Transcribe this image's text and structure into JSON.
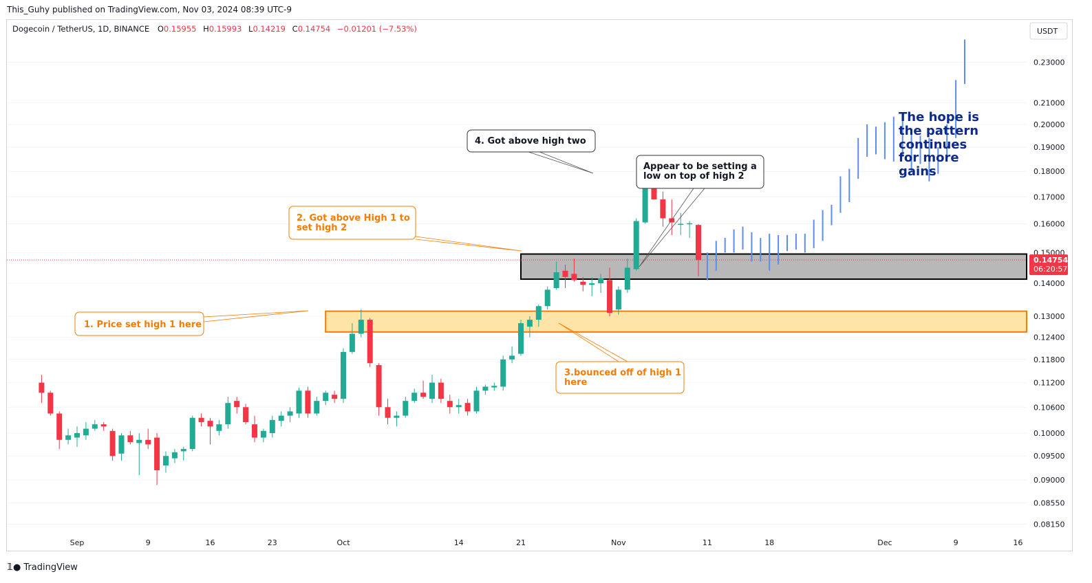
{
  "publisher_line": "This_Guhy published on TradingView.com, Nov 03, 2024 08:39 UTC-9",
  "legend": {
    "symbol": "Dogecoin / TetherUS, 1D, BINANCE",
    "o_label": "O",
    "o_val": "0.15955",
    "h_label": "H",
    "h_val": "0.15993",
    "l_label": "L",
    "l_val": "0.14219",
    "c_label": "C",
    "c_val": "0.14754",
    "change": "−0.01201 (−7.53%)"
  },
  "currency_button": "USDT",
  "price_label": {
    "value": "0.14754",
    "countdown": "06:20:57"
  },
  "footer": {
    "brand": "TradingView",
    "logo_icon": "tradingview-logo-icon"
  },
  "colors": {
    "up": "#22ab94",
    "down": "#f23645",
    "projection": "#5b8def",
    "orange": "#f57c00",
    "annotation_text": "#0d2a8a"
  },
  "annotations": {
    "note1": "1. Price set high 1 here",
    "note2_line1": "2. Got above High 1 to",
    "note2_line2": "set high 2",
    "note3_line1": "3.bounced off of high 1",
    "note3_line2": "here",
    "note4": "4. Got above high two",
    "note5_line1": "Appear to be setting a",
    "note5_line2": "low on top of high 2",
    "hope_lines": [
      "The hope is",
      "the pattern",
      "continues",
      "for more",
      "gains"
    ]
  },
  "chart_data": {
    "type": "candlestick",
    "y_axis": {
      "scale": "log",
      "ticks": [
        "0.23000",
        "0.21000",
        "0.20000",
        "0.19000",
        "0.18000",
        "0.17000",
        "0.16000",
        "0.15000",
        "0.14000",
        "0.13000",
        "0.12400",
        "0.11800",
        "0.11200",
        "0.10600",
        "0.10000",
        "0.09500",
        "0.09000",
        "0.08550",
        "0.08150"
      ]
    },
    "x_axis": {
      "ticks": [
        {
          "label": "Sep",
          "date": "2024-09-01"
        },
        {
          "label": "9",
          "date": "2024-09-09"
        },
        {
          "label": "16",
          "date": "2024-09-16"
        },
        {
          "label": "23",
          "date": "2024-09-23"
        },
        {
          "label": "Oct",
          "date": "2024-10-01"
        },
        {
          "label": "14",
          "date": "2024-10-14"
        },
        {
          "label": "21",
          "date": "2024-10-21"
        },
        {
          "label": "Nov",
          "date": "2024-11-01"
        },
        {
          "label": "11",
          "date": "2024-11-11"
        },
        {
          "label": "18",
          "date": "2024-11-18"
        },
        {
          "label": "Dec",
          "date": "2024-12-01"
        },
        {
          "label": "9",
          "date": "2024-12-09"
        },
        {
          "label": "16",
          "date": "2024-12-16"
        }
      ]
    },
    "zones": [
      {
        "name": "High 1 zone",
        "top": 0.1315,
        "bottom": 0.1255,
        "from": "2024-09-29",
        "to": "2024-12-17",
        "color": "#ffe4a8",
        "border": "#f57c00"
      },
      {
        "name": "High 2 zone",
        "top": 0.1495,
        "bottom": 0.1413,
        "from": "2024-10-21",
        "to": "2024-12-17",
        "color": "#b8b8b8",
        "border": "#000000"
      }
    ],
    "last_price": 0.14754,
    "candles": [
      {
        "d": "2024-08-28",
        "o": 0.112,
        "h": 0.114,
        "l": 0.107,
        "c": 0.1095
      },
      {
        "d": "2024-08-29",
        "o": 0.1095,
        "h": 0.11,
        "l": 0.104,
        "c": 0.1045
      },
      {
        "d": "2024-08-30",
        "o": 0.1045,
        "h": 0.105,
        "l": 0.0965,
        "c": 0.0985
      },
      {
        "d": "2024-08-31",
        "o": 0.0985,
        "h": 0.101,
        "l": 0.0975,
        "c": 0.0995
      },
      {
        "d": "2024-09-01",
        "o": 0.099,
        "h": 0.1015,
        "l": 0.097,
        "c": 0.1
      },
      {
        "d": "2024-09-02",
        "o": 0.0995,
        "h": 0.1025,
        "l": 0.0985,
        "c": 0.101
      },
      {
        "d": "2024-09-03",
        "o": 0.101,
        "h": 0.103,
        "l": 0.1005,
        "c": 0.102
      },
      {
        "d": "2024-09-04",
        "o": 0.102,
        "h": 0.1025,
        "l": 0.1005,
        "c": 0.1015
      },
      {
        "d": "2024-09-05",
        "o": 0.1005,
        "h": 0.101,
        "l": 0.094,
        "c": 0.095
      },
      {
        "d": "2024-09-06",
        "o": 0.0955,
        "h": 0.1,
        "l": 0.094,
        "c": 0.0995
      },
      {
        "d": "2024-09-07",
        "o": 0.0995,
        "h": 0.1005,
        "l": 0.0975,
        "c": 0.098
      },
      {
        "d": "2024-09-08",
        "o": 0.0978,
        "h": 0.1,
        "l": 0.091,
        "c": 0.0985
      },
      {
        "d": "2024-09-09",
        "o": 0.0985,
        "h": 0.101,
        "l": 0.0965,
        "c": 0.0975
      },
      {
        "d": "2024-09-10",
        "o": 0.099,
        "h": 0.1,
        "l": 0.089,
        "c": 0.092
      },
      {
        "d": "2024-09-11",
        "o": 0.093,
        "h": 0.096,
        "l": 0.0915,
        "c": 0.095
      },
      {
        "d": "2024-09-12",
        "o": 0.0945,
        "h": 0.0965,
        "l": 0.0935,
        "c": 0.0958
      },
      {
        "d": "2024-09-13",
        "o": 0.096,
        "h": 0.097,
        "l": 0.094,
        "c": 0.0965
      },
      {
        "d": "2024-09-14",
        "o": 0.0965,
        "h": 0.104,
        "l": 0.096,
        "c": 0.1035
      },
      {
        "d": "2024-09-15",
        "o": 0.1035,
        "h": 0.1045,
        "l": 0.1015,
        "c": 0.1025
      },
      {
        "d": "2024-09-16",
        "o": 0.1028,
        "h": 0.1035,
        "l": 0.0975,
        "c": 0.1015
      },
      {
        "d": "2024-09-17",
        "o": 0.1005,
        "h": 0.103,
        "l": 0.0995,
        "c": 0.102
      },
      {
        "d": "2024-09-18",
        "o": 0.102,
        "h": 0.1085,
        "l": 0.101,
        "c": 0.107
      },
      {
        "d": "2024-09-19",
        "o": 0.1075,
        "h": 0.1085,
        "l": 0.1045,
        "c": 0.106
      },
      {
        "d": "2024-09-20",
        "o": 0.106,
        "h": 0.1068,
        "l": 0.102,
        "c": 0.1025
      },
      {
        "d": "2024-09-21",
        "o": 0.102,
        "h": 0.104,
        "l": 0.098,
        "c": 0.099
      },
      {
        "d": "2024-09-22",
        "o": 0.099,
        "h": 0.101,
        "l": 0.098,
        "c": 0.1005
      },
      {
        "d": "2024-09-23",
        "o": 0.1,
        "h": 0.104,
        "l": 0.099,
        "c": 0.103
      },
      {
        "d": "2024-09-24",
        "o": 0.1028,
        "h": 0.105,
        "l": 0.1015,
        "c": 0.104
      },
      {
        "d": "2024-09-25",
        "o": 0.104,
        "h": 0.106,
        "l": 0.1025,
        "c": 0.105
      },
      {
        "d": "2024-09-26",
        "o": 0.1045,
        "h": 0.1108,
        "l": 0.1035,
        "c": 0.11
      },
      {
        "d": "2024-09-27",
        "o": 0.11,
        "h": 0.111,
        "l": 0.1035,
        "c": 0.1045
      },
      {
        "d": "2024-09-28",
        "o": 0.1045,
        "h": 0.1085,
        "l": 0.104,
        "c": 0.1075
      },
      {
        "d": "2024-09-29",
        "o": 0.1075,
        "h": 0.11,
        "l": 0.1065,
        "c": 0.1095
      },
      {
        "d": "2024-09-30",
        "o": 0.109,
        "h": 0.11,
        "l": 0.107,
        "c": 0.108
      },
      {
        "d": "2024-10-01",
        "o": 0.108,
        "h": 0.121,
        "l": 0.107,
        "c": 0.12
      },
      {
        "d": "2024-10-02",
        "o": 0.12,
        "h": 0.128,
        "l": 0.1195,
        "c": 0.125
      },
      {
        "d": "2024-10-03",
        "o": 0.125,
        "h": 0.132,
        "l": 0.124,
        "c": 0.129
      },
      {
        "d": "2024-10-04",
        "o": 0.129,
        "h": 0.1295,
        "l": 0.116,
        "c": 0.117
      },
      {
        "d": "2024-10-05",
        "o": 0.1165,
        "h": 0.117,
        "l": 0.104,
        "c": 0.106
      },
      {
        "d": "2024-10-06",
        "o": 0.106,
        "h": 0.108,
        "l": 0.102,
        "c": 0.1035
      },
      {
        "d": "2024-10-07",
        "o": 0.1035,
        "h": 0.105,
        "l": 0.1015,
        "c": 0.104
      },
      {
        "d": "2024-10-08",
        "o": 0.104,
        "h": 0.1085,
        "l": 0.1035,
        "c": 0.1075
      },
      {
        "d": "2024-10-09",
        "o": 0.1075,
        "h": 0.1105,
        "l": 0.107,
        "c": 0.1095
      },
      {
        "d": "2024-10-10",
        "o": 0.1095,
        "h": 0.1125,
        "l": 0.108,
        "c": 0.1085
      },
      {
        "d": "2024-10-11",
        "o": 0.108,
        "h": 0.114,
        "l": 0.107,
        "c": 0.112
      },
      {
        "d": "2024-10-12",
        "o": 0.112,
        "h": 0.113,
        "l": 0.107,
        "c": 0.108
      },
      {
        "d": "2024-10-13",
        "o": 0.1075,
        "h": 0.109,
        "l": 0.1045,
        "c": 0.106
      },
      {
        "d": "2024-10-14",
        "o": 0.106,
        "h": 0.108,
        "l": 0.1045,
        "c": 0.1065
      },
      {
        "d": "2024-10-15",
        "o": 0.107,
        "h": 0.108,
        "l": 0.104,
        "c": 0.105
      },
      {
        "d": "2024-10-16",
        "o": 0.105,
        "h": 0.111,
        "l": 0.1045,
        "c": 0.11
      },
      {
        "d": "2024-10-17",
        "o": 0.11,
        "h": 0.1115,
        "l": 0.109,
        "c": 0.111
      },
      {
        "d": "2024-10-18",
        "o": 0.1108,
        "h": 0.112,
        "l": 0.11,
        "c": 0.1112
      },
      {
        "d": "2024-10-19",
        "o": 0.111,
        "h": 0.119,
        "l": 0.11,
        "c": 0.118
      },
      {
        "d": "2024-10-20",
        "o": 0.118,
        "h": 0.1215,
        "l": 0.117,
        "c": 0.119
      },
      {
        "d": "2024-10-21",
        "o": 0.1195,
        "h": 0.129,
        "l": 0.119,
        "c": 0.128
      },
      {
        "d": "2024-10-22",
        "o": 0.127,
        "h": 0.13,
        "l": 0.124,
        "c": 0.129
      },
      {
        "d": "2024-10-23",
        "o": 0.129,
        "h": 0.1335,
        "l": 0.127,
        "c": 0.133
      },
      {
        "d": "2024-10-24",
        "o": 0.133,
        "h": 0.139,
        "l": 0.132,
        "c": 0.138
      },
      {
        "d": "2024-10-25",
        "o": 0.1385,
        "h": 0.147,
        "l": 0.138,
        "c": 0.1435
      },
      {
        "d": "2024-10-26",
        "o": 0.144,
        "h": 0.146,
        "l": 0.1385,
        "c": 0.142
      },
      {
        "d": "2024-10-27",
        "o": 0.143,
        "h": 0.148,
        "l": 0.1405,
        "c": 0.141
      },
      {
        "d": "2024-10-28",
        "o": 0.1405,
        "h": 0.142,
        "l": 0.1375,
        "c": 0.1395
      },
      {
        "d": "2024-10-29",
        "o": 0.1395,
        "h": 0.142,
        "l": 0.136,
        "c": 0.14
      },
      {
        "d": "2024-10-30",
        "o": 0.14,
        "h": 0.143,
        "l": 0.137,
        "c": 0.1415
      },
      {
        "d": "2024-10-31",
        "o": 0.141,
        "h": 0.145,
        "l": 0.13,
        "c": 0.131
      },
      {
        "d": "2024-11-01",
        "o": 0.132,
        "h": 0.139,
        "l": 0.1305,
        "c": 0.138
      },
      {
        "d": "2024-11-02",
        "o": 0.138,
        "h": 0.148,
        "l": 0.137,
        "c": 0.145
      },
      {
        "d": "2024-11-03",
        "o": 0.1445,
        "h": 0.162,
        "l": 0.144,
        "c": 0.161
      },
      {
        "d": "2024-11-04",
        "o": 0.1605,
        "h": 0.179,
        "l": 0.16,
        "c": 0.178
      },
      {
        "d": "2024-11-05",
        "o": 0.1775,
        "h": 0.178,
        "l": 0.169,
        "c": 0.169
      },
      {
        "d": "2024-11-06",
        "o": 0.169,
        "h": 0.172,
        "l": 0.159,
        "c": 0.162
      },
      {
        "d": "2024-11-07",
        "o": 0.162,
        "h": 0.169,
        "l": 0.156,
        "c": 0.1605
      },
      {
        "d": "2024-11-08",
        "o": 0.16,
        "h": 0.164,
        "l": 0.156,
        "c": 0.16
      },
      {
        "d": "2024-11-09",
        "o": 0.16,
        "h": 0.161,
        "l": 0.155,
        "c": 0.1602
      },
      {
        "d": "2024-11-10",
        "o": 0.1596,
        "h": 0.1599,
        "l": 0.1422,
        "c": 0.1475
      }
    ],
    "projection_bars": [
      {
        "d": "2024-11-11",
        "h": 0.15,
        "l": 0.141
      },
      {
        "d": "2024-11-12",
        "h": 0.154,
        "l": 0.144
      },
      {
        "d": "2024-11-13",
        "h": 0.155,
        "l": 0.15
      },
      {
        "d": "2024-11-14",
        "h": 0.158,
        "l": 0.15
      },
      {
        "d": "2024-11-15",
        "h": 0.159,
        "l": 0.151
      },
      {
        "d": "2024-11-16",
        "h": 0.157,
        "l": 0.147
      },
      {
        "d": "2024-11-17",
        "h": 0.155,
        "l": 0.147
      },
      {
        "d": "2024-11-18",
        "h": 0.1565,
        "l": 0.144
      },
      {
        "d": "2024-11-19",
        "h": 0.156,
        "l": 0.146
      },
      {
        "d": "2024-11-20",
        "h": 0.156,
        "l": 0.1505
      },
      {
        "d": "2024-11-21",
        "h": 0.1565,
        "l": 0.151
      },
      {
        "d": "2024-11-22",
        "h": 0.1565,
        "l": 0.15
      },
      {
        "d": "2024-11-23",
        "h": 0.1615,
        "l": 0.1515
      },
      {
        "d": "2024-11-24",
        "h": 0.165,
        "l": 0.154
      },
      {
        "d": "2024-11-25",
        "h": 0.167,
        "l": 0.1595
      },
      {
        "d": "2024-11-26",
        "h": 0.178,
        "l": 0.164
      },
      {
        "d": "2024-11-27",
        "h": 0.181,
        "l": 0.168
      },
      {
        "d": "2024-11-28",
        "h": 0.194,
        "l": 0.177
      },
      {
        "d": "2024-11-29",
        "h": 0.2,
        "l": 0.186
      },
      {
        "d": "2024-11-30",
        "h": 0.199,
        "l": 0.187
      },
      {
        "d": "2024-12-01",
        "h": 0.201,
        "l": 0.185
      },
      {
        "d": "2024-12-02",
        "h": 0.2035,
        "l": 0.184
      },
      {
        "d": "2024-12-03",
        "h": 0.2025,
        "l": 0.186
      },
      {
        "d": "2024-12-04",
        "h": 0.196,
        "l": 0.18
      },
      {
        "d": "2024-12-05",
        "h": 0.195,
        "l": 0.183
      },
      {
        "d": "2024-12-06",
        "h": 0.194,
        "l": 0.176
      },
      {
        "d": "2024-12-07",
        "h": 0.19,
        "l": 0.179
      },
      {
        "d": "2024-12-08",
        "h": 0.2,
        "l": 0.185
      },
      {
        "d": "2024-12-09",
        "h": 0.221,
        "l": 0.194
      },
      {
        "d": "2024-12-10",
        "h": 0.242,
        "l": 0.219
      }
    ]
  }
}
